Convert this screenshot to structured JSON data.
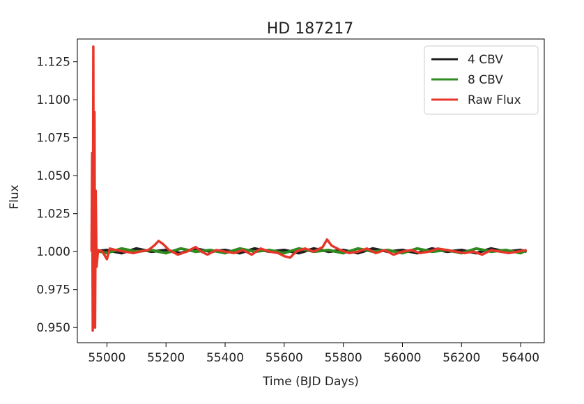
{
  "chart_data": {
    "type": "line",
    "title": "HD 187217",
    "xlabel": "Time (BJD Days)",
    "ylabel": "Flux",
    "xlim": [
      54900,
      56480
    ],
    "ylim": [
      0.94,
      1.14
    ],
    "xticks": [
      55000,
      55200,
      55400,
      55600,
      55800,
      56000,
      56200,
      56400
    ],
    "xtick_labels": [
      "55000",
      "55200",
      "55400",
      "55600",
      "55800",
      "56000",
      "56200",
      "56400"
    ],
    "yticks": [
      0.95,
      0.975,
      1.0,
      1.025,
      1.05,
      1.075,
      1.1,
      1.125
    ],
    "ytick_labels": [
      "0.950",
      "0.975",
      "1.000",
      "1.025",
      "1.050",
      "1.075",
      "1.100",
      "1.125"
    ],
    "legend_position": "top-right",
    "grid": false,
    "series": [
      {
        "name": "4 CBV",
        "color": "#1f1f1f",
        "x": [
          54955,
          55000,
          55050,
          55100,
          55150,
          55200,
          55250,
          55300,
          55350,
          55400,
          55450,
          55500,
          55550,
          55600,
          55650,
          55700,
          55750,
          55800,
          55850,
          55900,
          55950,
          56000,
          56050,
          56100,
          56150,
          56200,
          56250,
          56300,
          56350,
          56400,
          56420
        ],
        "y": [
          1.0,
          1.001,
          0.999,
          1.002,
          1.0,
          1.001,
          0.999,
          1.002,
          1.0,
          1.001,
          0.999,
          1.002,
          1.0,
          1.001,
          0.999,
          1.002,
          1.0,
          1.001,
          0.999,
          1.002,
          1.0,
          1.001,
          0.999,
          1.002,
          1.0,
          1.001,
          0.999,
          1.002,
          1.0,
          1.001,
          1.0
        ]
      },
      {
        "name": "8 CBV",
        "color": "#2e8b1f",
        "x": [
          54955,
          55000,
          55050,
          55100,
          55150,
          55200,
          55250,
          55300,
          55350,
          55400,
          55450,
          55500,
          55550,
          55600,
          55650,
          55700,
          55750,
          55800,
          55850,
          55900,
          55950,
          56000,
          56050,
          56100,
          56150,
          56200,
          56250,
          56300,
          56350,
          56400,
          56420
        ],
        "y": [
          1.001,
          0.999,
          1.002,
          1.0,
          1.001,
          0.999,
          1.002,
          1.0,
          1.001,
          0.999,
          1.002,
          1.0,
          1.001,
          0.999,
          1.002,
          1.0,
          1.001,
          0.999,
          1.002,
          1.0,
          1.001,
          0.999,
          1.002,
          1.0,
          1.001,
          0.999,
          1.002,
          1.0,
          1.001,
          0.999,
          1.001
        ]
      },
      {
        "name": "Raw Flux",
        "color": "#e8352a",
        "x": [
          54948,
          54950,
          54952,
          54954,
          54956,
          54958,
          54960,
          54962,
          54965,
          54970,
          54985,
          55000,
          55010,
          55030,
          55060,
          55090,
          55110,
          55140,
          55160,
          55175,
          55190,
          55210,
          55240,
          55270,
          55300,
          55320,
          55340,
          55370,
          55400,
          55430,
          55460,
          55490,
          55520,
          55550,
          55580,
          55600,
          55620,
          55640,
          55670,
          55700,
          55730,
          55745,
          55760,
          55790,
          55820,
          55850,
          55880,
          55910,
          55940,
          55970,
          56000,
          56030,
          56060,
          56090,
          56120,
          56150,
          56180,
          56210,
          56240,
          56270,
          56300,
          56330,
          56360,
          56390,
          56420
        ],
        "y": [
          1.0,
          1.065,
          0.948,
          1.135,
          0.951,
          1.092,
          0.95,
          1.04,
          0.99,
          1.001,
          1.0,
          0.995,
          1.002,
          1.001,
          1.0,
          0.999,
          1.0,
          1.001,
          1.004,
          1.007,
          1.005,
          1.001,
          0.998,
          1.0,
          1.003,
          1.0,
          0.998,
          1.001,
          1.0,
          0.999,
          1.001,
          0.998,
          1.002,
          1.0,
          0.999,
          0.997,
          0.996,
          1.0,
          1.002,
          1.0,
          1.003,
          1.008,
          1.004,
          1.001,
          0.999,
          1.0,
          1.002,
          0.999,
          1.001,
          0.998,
          1.0,
          1.001,
          0.999,
          1.0,
          1.002,
          1.001,
          1.0,
          0.999,
          1.0,
          0.998,
          1.001,
          1.0,
          0.999,
          1.0,
          1.001
        ]
      }
    ]
  }
}
